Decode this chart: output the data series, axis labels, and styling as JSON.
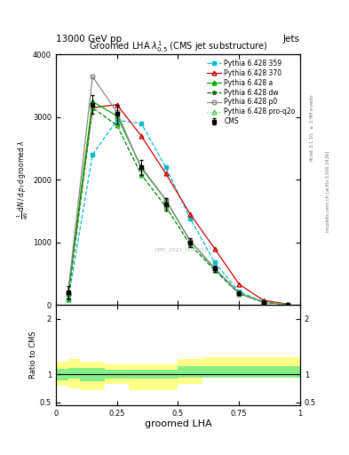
{
  "title": "Groomed LHA $\\lambda^{1}_{0.5}$ (CMS jet substructure)",
  "header_left": "13000 GeV pp",
  "header_right": "Jets",
  "xlabel": "groomed LHA",
  "ylabel_ratio": "Ratio to CMS",
  "watermark": "CMS_2021_I1920187",
  "right_label_top": "Rivet 3.1.10, $\\geq$ 2.9M events",
  "right_label_bot": "mcplots.cern.ch [arXiv:1306.3436]",
  "x_centers": [
    0.05,
    0.15,
    0.25,
    0.35,
    0.45,
    0.55,
    0.65,
    0.75,
    0.85,
    0.95
  ],
  "cms_data": [
    200,
    3200,
    3050,
    2200,
    1600,
    1000,
    580,
    180,
    40,
    5
  ],
  "cms_errors": [
    100,
    150,
    150,
    120,
    100,
    70,
    50,
    25,
    15,
    4
  ],
  "pythia_359": [
    80,
    2400,
    2950,
    2900,
    2200,
    1380,
    680,
    210,
    48,
    7
  ],
  "pythia_370": [
    180,
    3150,
    3200,
    2700,
    2100,
    1450,
    900,
    330,
    72,
    12
  ],
  "pythia_a": [
    190,
    3250,
    3020,
    2200,
    1680,
    1020,
    580,
    185,
    42,
    6
  ],
  "pythia_dw": [
    90,
    3150,
    2870,
    2080,
    1570,
    960,
    555,
    178,
    40,
    6
  ],
  "pythia_p0": [
    190,
    3650,
    3080,
    2180,
    1680,
    1020,
    588,
    185,
    44,
    6
  ],
  "pythia_pro_q2o": [
    90,
    3150,
    2870,
    2080,
    1570,
    960,
    555,
    178,
    40,
    6
  ],
  "ratio_bin_edges": [
    0.0,
    0.05,
    0.1,
    0.2,
    0.3,
    0.5,
    0.6,
    0.7,
    1.0
  ],
  "ratio_green_lo": [
    0.9,
    0.92,
    0.88,
    0.92,
    0.92,
    0.94,
    0.94,
    0.94
  ],
  "ratio_green_hi": [
    1.1,
    1.12,
    1.12,
    1.08,
    1.08,
    1.15,
    1.15,
    1.15
  ],
  "ratio_yellow_lo": [
    0.8,
    0.75,
    0.72,
    0.83,
    0.72,
    0.83,
    0.98,
    0.98
  ],
  "ratio_yellow_hi": [
    1.22,
    1.28,
    1.23,
    1.18,
    1.18,
    1.28,
    1.3,
    1.3
  ],
  "color_cms": "#000000",
  "color_359": "#00bbcc",
  "color_370": "#cc0000",
  "color_a": "#00aa00",
  "color_dw": "#006600",
  "color_p0": "#888888",
  "color_pro_q2o": "#44cc44",
  "ylim_main": [
    0,
    4000
  ],
  "yticks_main": [
    0,
    1000,
    2000,
    3000,
    4000
  ],
  "ylim_ratio": [
    0.45,
    2.25
  ],
  "yticks_ratio": [
    0.5,
    1.0,
    2.0
  ]
}
